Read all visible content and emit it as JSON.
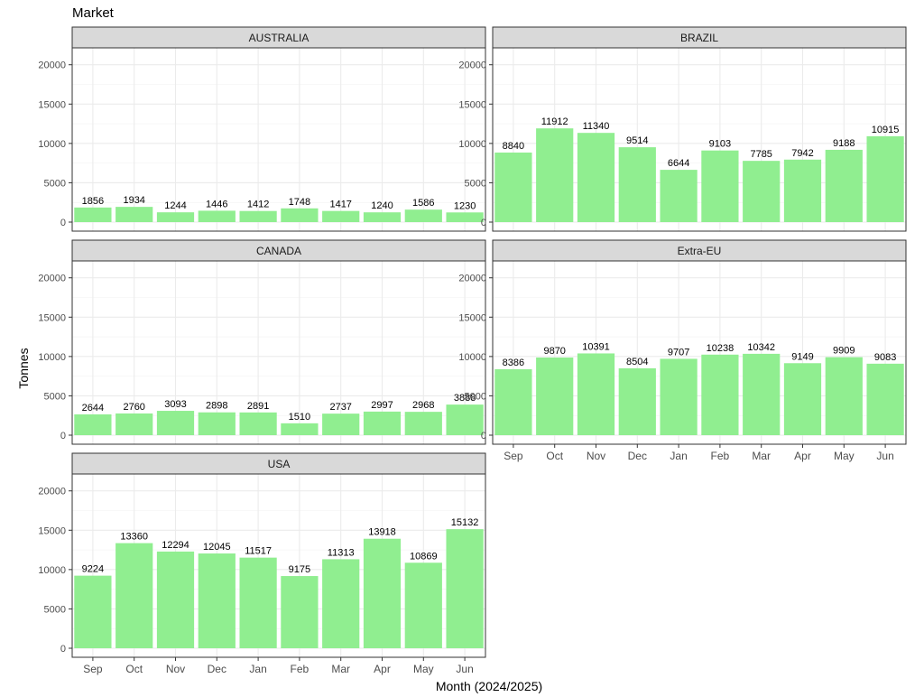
{
  "chart_data": {
    "type": "bar",
    "title": "Market",
    "xlabel": "Month (2024/2025)",
    "ylabel": "Tonnes",
    "ylim": [
      0,
      21000
    ],
    "yticks": [
      0,
      5000,
      10000,
      15000,
      20000
    ],
    "categories": [
      "Sep",
      "Oct",
      "Nov",
      "Dec",
      "Jan",
      "Feb",
      "Mar",
      "Apr",
      "May",
      "Jun"
    ],
    "bar_color": "#90ee90",
    "strip_color": "#d9d9d9",
    "grid": true,
    "facets": [
      {
        "name": "AUSTRALIA",
        "values": [
          1856,
          1934,
          1244,
          1446,
          1412,
          1748,
          1417,
          1240,
          1586,
          1230
        ]
      },
      {
        "name": "BRAZIL",
        "values": [
          8840,
          11912,
          11340,
          9514,
          6644,
          9103,
          7785,
          7942,
          9188,
          10915
        ]
      },
      {
        "name": "CANADA",
        "values": [
          2644,
          2760,
          3093,
          2898,
          2891,
          1510,
          2737,
          2997,
          2968,
          3888
        ]
      },
      {
        "name": "Extra-EU",
        "values": [
          8386,
          9870,
          10391,
          8504,
          9707,
          10238,
          10342,
          9149,
          9909,
          9083
        ]
      },
      {
        "name": "USA",
        "values": [
          9224,
          13360,
          12294,
          12045,
          11517,
          9175,
          11313,
          13918,
          10869,
          15132
        ]
      }
    ]
  }
}
